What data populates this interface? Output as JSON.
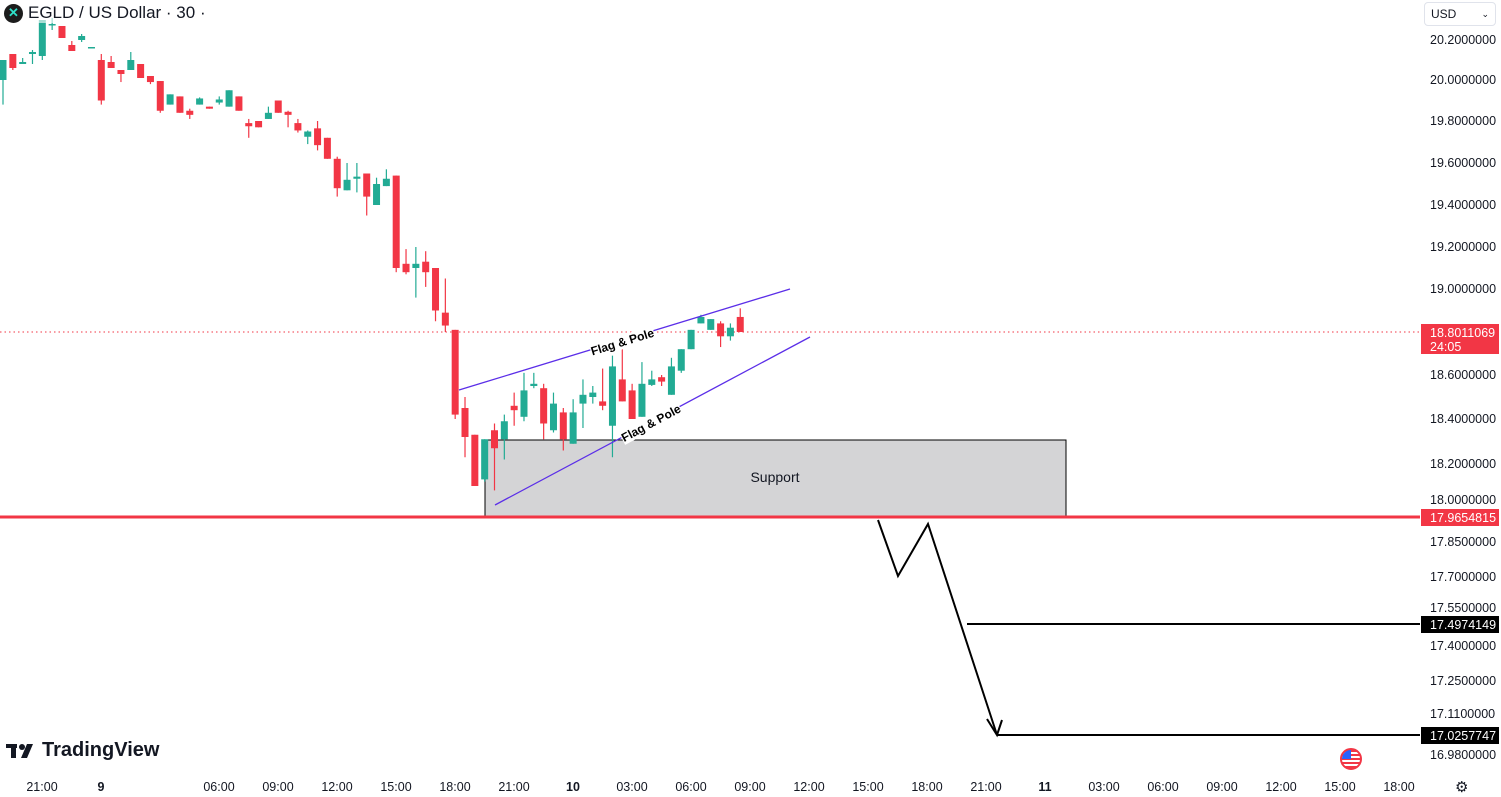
{
  "header": {
    "symbol_title": "EGLD / US Dollar · 30 ·",
    "logo_icon": "egld-logo-icon"
  },
  "currency_button": {
    "label": "USD",
    "icon": "chevron-down-icon"
  },
  "branding": {
    "logo_text": "TradingView"
  },
  "colors": {
    "up": "#22ab94",
    "down": "#f23645",
    "trendline": "#5b2ee8",
    "support_fill": "#d4d4d6",
    "support_line": "#f23645",
    "target_line": "#000000"
  },
  "chart_data": {
    "type": "candlestick",
    "title": "EGLD / US Dollar · 30",
    "interval": "30",
    "y_tick_labels": [
      "20.2000000",
      "20.0000000",
      "19.8000000",
      "19.6000000",
      "19.4000000",
      "19.2000000",
      "19.0000000",
      "18.6000000",
      "18.4000000",
      "18.2000000",
      "18.0000000",
      "17.8500000",
      "17.7000000",
      "17.5500000",
      "17.4000000",
      "17.2500000",
      "17.1100000",
      "16.9800000"
    ],
    "x_tick_labels": [
      "21:00",
      "9",
      "06:00",
      "09:00",
      "12:00",
      "15:00",
      "18:00",
      "21:00",
      "10",
      "03:00",
      "06:00",
      "09:00",
      "12:00",
      "15:00",
      "18:00",
      "21:00",
      "11",
      "03:00",
      "06:00",
      "09:00",
      "12:00",
      "15:00",
      "18:00"
    ],
    "x_bold_labels": [
      "9",
      "10",
      "11"
    ],
    "current_price": {
      "value": "18.8011069",
      "countdown": "24:05"
    },
    "candles_ohlc": [
      [
        20.0,
        20.1,
        19.88,
        20.1
      ],
      [
        20.13,
        20.13,
        20.05,
        20.06
      ],
      [
        20.08,
        20.11,
        20.08,
        20.09
      ],
      [
        20.13,
        20.15,
        20.08,
        20.14
      ],
      [
        20.12,
        20.3,
        20.1,
        20.3
      ],
      [
        20.28,
        20.31,
        20.25,
        20.28
      ],
      [
        20.27,
        20.27,
        20.21,
        20.21
      ],
      [
        20.175,
        20.195,
        20.145,
        20.145
      ],
      [
        20.2,
        20.23,
        20.19,
        20.22
      ],
      [
        20.165,
        20.165,
        20.165,
        20.165
      ],
      [
        20.1,
        20.13,
        19.88,
        19.9
      ],
      [
        20.09,
        20.12,
        20.06,
        20.06
      ],
      [
        20.05,
        20.05,
        19.99,
        20.03
      ],
      [
        20.05,
        20.14,
        20.05,
        20.1
      ],
      [
        20.08,
        20.08,
        20.01,
        20.01
      ],
      [
        20.02,
        20.02,
        19.98,
        19.99
      ],
      [
        19.995,
        19.995,
        19.84,
        19.85
      ],
      [
        19.88,
        19.93,
        19.88,
        19.93
      ],
      [
        19.92,
        19.92,
        19.84,
        19.84
      ],
      [
        19.85,
        19.86,
        19.81,
        19.83
      ],
      [
        19.88,
        19.915,
        19.88,
        19.91
      ],
      [
        19.87,
        19.87,
        19.86,
        19.86
      ],
      [
        19.89,
        19.92,
        19.88,
        19.905
      ],
      [
        19.87,
        19.95,
        19.87,
        19.95
      ],
      [
        19.92,
        19.92,
        19.85,
        19.85
      ],
      [
        19.79,
        19.81,
        19.72,
        19.775
      ],
      [
        19.8,
        19.8,
        19.77,
        19.77
      ],
      [
        19.81,
        19.87,
        19.81,
        19.84
      ],
      [
        19.9,
        19.9,
        19.84,
        19.84
      ],
      [
        19.845,
        19.85,
        19.77,
        19.83
      ],
      [
        19.79,
        19.81,
        19.745,
        19.755
      ],
      [
        19.725,
        19.755,
        19.69,
        19.75
      ],
      [
        19.765,
        19.8,
        19.66,
        19.685
      ],
      [
        19.72,
        19.72,
        19.62,
        19.62
      ],
      [
        19.62,
        19.63,
        19.44,
        19.48
      ],
      [
        19.47,
        19.6,
        19.47,
        19.52
      ],
      [
        19.525,
        19.6,
        19.46,
        19.535
      ],
      [
        19.55,
        19.55,
        19.35,
        19.44
      ],
      [
        19.4,
        19.53,
        19.4,
        19.5
      ],
      [
        19.49,
        19.57,
        19.49,
        19.525
      ],
      [
        19.54,
        19.54,
        19.08,
        19.1
      ],
      [
        19.12,
        19.19,
        19.07,
        19.08
      ],
      [
        19.1,
        19.2,
        18.96,
        19.12
      ],
      [
        19.13,
        19.18,
        19.01,
        19.08
      ],
      [
        19.1,
        19.1,
        18.85,
        18.9
      ],
      [
        18.89,
        19.05,
        18.8,
        18.83
      ],
      [
        18.81,
        18.81,
        18.4,
        18.42
      ],
      [
        18.45,
        18.5,
        18.23,
        18.32
      ],
      [
        18.33,
        18.33,
        18.1,
        18.1
      ],
      [
        18.13,
        18.31,
        18.12,
        18.31
      ],
      [
        18.35,
        18.38,
        18.08,
        18.27
      ],
      [
        18.31,
        18.42,
        18.22,
        18.39
      ],
      [
        18.46,
        18.52,
        18.37,
        18.44
      ],
      [
        18.41,
        18.61,
        18.39,
        18.53
      ],
      [
        18.55,
        18.61,
        18.54,
        18.56
      ],
      [
        18.54,
        18.56,
        18.31,
        18.38
      ],
      [
        18.35,
        18.52,
        18.34,
        18.47
      ],
      [
        18.43,
        18.45,
        18.26,
        18.31
      ],
      [
        18.29,
        18.49,
        18.29,
        18.43
      ],
      [
        18.47,
        18.58,
        18.36,
        18.51
      ],
      [
        18.5,
        18.55,
        18.47,
        18.52
      ],
      [
        18.48,
        18.63,
        18.44,
        18.46
      ],
      [
        18.37,
        18.69,
        18.23,
        18.64
      ],
      [
        18.58,
        18.74,
        18.48,
        18.48
      ],
      [
        18.53,
        18.56,
        18.4,
        18.4
      ],
      [
        18.41,
        18.66,
        18.41,
        18.56
      ],
      [
        18.555,
        18.62,
        18.55,
        18.58
      ],
      [
        18.59,
        18.6,
        18.55,
        18.57
      ],
      [
        18.51,
        18.68,
        18.51,
        18.64
      ],
      [
        18.62,
        18.72,
        18.61,
        18.72
      ],
      [
        18.72,
        18.81,
        18.72,
        18.81
      ],
      [
        18.84,
        18.88,
        18.84,
        18.87
      ],
      [
        18.81,
        18.86,
        18.81,
        18.86
      ],
      [
        18.84,
        18.85,
        18.73,
        18.78
      ],
      [
        18.78,
        18.84,
        18.76,
        18.82
      ],
      [
        18.87,
        18.91,
        18.8,
        18.8
      ]
    ]
  },
  "drawings": {
    "flag_upper_label": "Flag & Pole",
    "flag_lower_label": "Flag & Pole",
    "support_label": "Support",
    "support_line_price": "17.9654815",
    "target1_price": "17.4974149",
    "target2_price": "17.0257747"
  },
  "footer": {
    "flag_icon": "us-flag-icon",
    "settings_icon": "gear-icon"
  }
}
